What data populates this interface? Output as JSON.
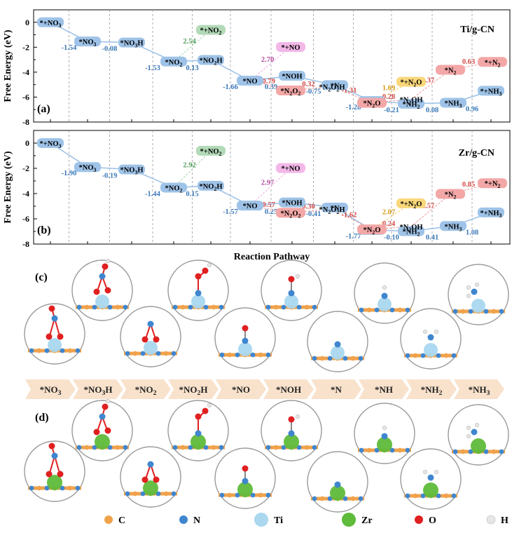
{
  "colors": {
    "blue_box": "#9fc3e8",
    "blue_text": "#3a78b8",
    "green_box": "#b3dab8",
    "green_text": "#4d9d59",
    "pink_box": "#f3b7e8",
    "pink_text": "#b24a9b",
    "red_box": "#f3a7a7",
    "red_text": "#d24848",
    "yellow_box": "#f9d77a",
    "yellow_text": "#d89a10",
    "chip_bg": "#f9e2cc",
    "atom_C": "#f0a24b",
    "atom_N": "#3f86cf",
    "atom_Ti": "#a9d8ef",
    "atom_Zr": "#5fbb3a",
    "atom_O": "#e02020",
    "atom_H": "#e6e6e6"
  },
  "chart_data": [
    {
      "type": "line",
      "panel": "(a)",
      "title": "Ti/g-CN",
      "ylabel": "Free Energy (eV)",
      "ylim": [
        -8,
        1
      ],
      "yticks": [
        "0",
        "-2",
        "-4",
        "-6",
        "-8"
      ],
      "main_path": [
        {
          "label": "*+NO3",
          "step": 0,
          "y": 0.0
        },
        {
          "label": "*NO3",
          "step": 1,
          "y": -1.54
        },
        {
          "label": "*NO3H",
          "step": 2,
          "y": -1.62
        },
        {
          "label": "*NO2",
          "step": 3,
          "y": -3.15
        },
        {
          "label": "*NO2H",
          "step": 4,
          "y": -3.02
        },
        {
          "label": "*NO",
          "step": 5,
          "y": -4.68
        },
        {
          "label": "*NOH",
          "step": 6,
          "y": -4.29
        },
        {
          "label": "*N",
          "step": 7,
          "y": -5.04
        },
        {
          "label": "*NH",
          "step": 8,
          "y": -6.32
        },
        {
          "label": "*NH2",
          "step": 9,
          "y": -6.53
        },
        {
          "label": "*NH3",
          "step": 10,
          "y": -6.45
        },
        {
          "label": "*+NH3",
          "step": 11,
          "y": -5.49
        }
      ],
      "main_steps": [
        "-1.54",
        "-0.08",
        "-1.53",
        "0.13",
        "-1.66",
        "0.39",
        "-0.75",
        "-1.28",
        "-0.21",
        "0.08",
        "0.96"
      ],
      "branches": [
        {
          "from": "*NO2",
          "to": "*+NO2",
          "delta": "2.54",
          "y": -0.61,
          "color": "green"
        },
        {
          "from": "*NO",
          "to": "*+NO",
          "delta": "2.70",
          "y": -1.98,
          "color": "pink"
        },
        {
          "from": "*NO",
          "to": "*N2O2",
          "delta": "-0.79",
          "y": -5.47,
          "color": "red"
        },
        {
          "from": "*N2O2",
          "to": "*N2O2H",
          "delta": "0.32",
          "y": -5.15,
          "color": "red"
        },
        {
          "from": "*N2O2H",
          "to": "*N2O",
          "delta": "-1.31",
          "y": -6.46,
          "color": "red"
        },
        {
          "from": "*N2O",
          "to": "*+N2O",
          "delta": "1.69",
          "y": -4.77,
          "color": "yellow"
        },
        {
          "from": "*N2O",
          "to": "*N2OH",
          "delta": "0.28",
          "y": -6.18,
          "color": "red"
        },
        {
          "from": "*N2OH",
          "to": "*N2",
          "delta": "2.37",
          "y": -3.81,
          "color": "red"
        },
        {
          "from": "*N2",
          "to": "*+N2",
          "delta": "0.63",
          "y": -3.18,
          "color": "red"
        }
      ]
    },
    {
      "type": "line",
      "panel": "(b)",
      "title": "Zr/g-CN",
      "ylabel": "Free Energy (eV)",
      "ylim": [
        -8,
        1
      ],
      "yticks": [
        "0",
        "-2",
        "-4",
        "-6",
        "-8"
      ],
      "xlabel": "Reaction Pathway",
      "main_path": [
        {
          "label": "*+NO3",
          "step": 0,
          "y": 0.0
        },
        {
          "label": "*NO3",
          "step": 1,
          "y": -1.9
        },
        {
          "label": "*NO3H",
          "step": 2,
          "y": -2.09
        },
        {
          "label": "*NO2",
          "step": 3,
          "y": -3.53
        },
        {
          "label": "*NO2H",
          "step": 4,
          "y": -3.38
        },
        {
          "label": "*NO",
          "step": 5,
          "y": -4.95
        },
        {
          "label": "*NOH",
          "step": 6,
          "y": -4.7
        },
        {
          "label": "*N",
          "step": 7,
          "y": -5.11
        },
        {
          "label": "*NH",
          "step": 8,
          "y": -6.88
        },
        {
          "label": "*NH2",
          "step": 9,
          "y": -6.98
        },
        {
          "label": "*NH3",
          "step": 10,
          "y": -6.57
        },
        {
          "label": "*+NH3",
          "step": 11,
          "y": -5.49
        }
      ],
      "main_steps": [
        "-1.90",
        "-0.19",
        "-1.44",
        "0.15",
        "-1.57",
        "0.25",
        "-0.41",
        "-1.77",
        "-0.10",
        "0.41",
        "1.08"
      ],
      "branches": [
        {
          "from": "*NO2",
          "to": "*+NO2",
          "delta": "2.92",
          "y": -0.61,
          "color": "green"
        },
        {
          "from": "*NO",
          "to": "*+NO",
          "delta": "2.97",
          "y": -1.98,
          "color": "pink"
        },
        {
          "from": "*NO",
          "to": "*N2O2",
          "delta": "-0.57",
          "y": -5.52,
          "color": "red"
        },
        {
          "from": "*N2O2",
          "to": "*N2O2H",
          "delta": "0.30",
          "y": -5.22,
          "color": "red"
        },
        {
          "from": "*N2O2H",
          "to": "*N2O",
          "delta": "-1.62",
          "y": -6.84,
          "color": "red"
        },
        {
          "from": "*N2O",
          "to": "*+N2O",
          "delta": "2.07",
          "y": -4.77,
          "color": "yellow"
        },
        {
          "from": "*N2O",
          "to": "*N2OH",
          "delta": "0.24",
          "y": -6.6,
          "color": "red"
        },
        {
          "from": "*N2OH",
          "to": "*N2",
          "delta": "2.57",
          "y": -4.03,
          "color": "red"
        },
        {
          "from": "*N2",
          "to": "*+N2",
          "delta": "0.85",
          "y": -3.18,
          "color": "red"
        }
      ]
    }
  ],
  "structures": {
    "panel_c_label": "(c)",
    "panel_d_label": "(d)",
    "intermediates": [
      "*NO3",
      "*NO3H",
      "*NO2",
      "*NO2H",
      "*NO",
      "*NOH",
      "*N",
      "*NH",
      "*NH2",
      "*NH3"
    ]
  },
  "legend": [
    {
      "symbol": "C",
      "color": "atom_C"
    },
    {
      "symbol": "N",
      "color": "atom_N"
    },
    {
      "symbol": "Ti",
      "color": "atom_Ti"
    },
    {
      "symbol": "Zr",
      "color": "atom_Zr"
    },
    {
      "symbol": "O",
      "color": "atom_O"
    },
    {
      "symbol": "H",
      "color": "atom_H"
    }
  ]
}
